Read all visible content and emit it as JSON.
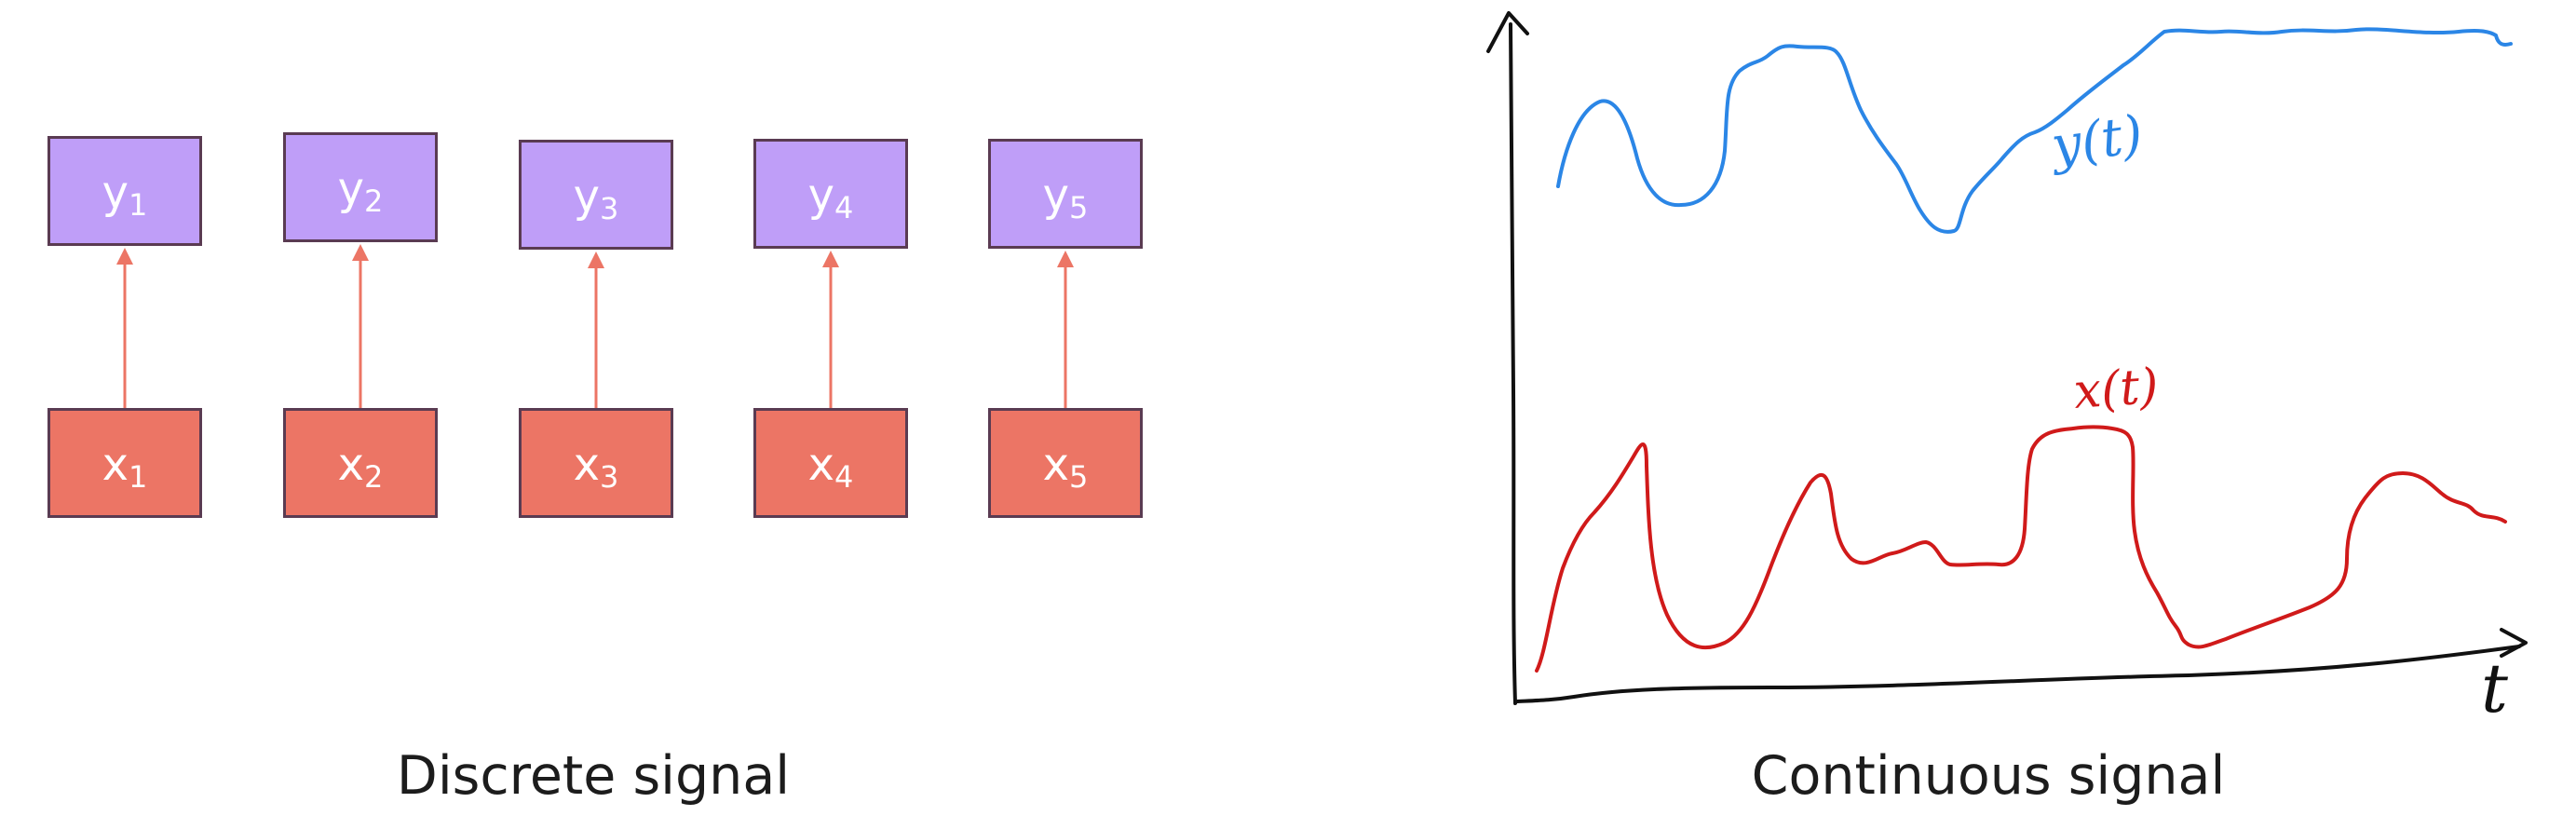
{
  "discrete": {
    "caption": "Discrete signal",
    "outputs": [
      {
        "base": "y",
        "sub": "1"
      },
      {
        "base": "y",
        "sub": "2"
      },
      {
        "base": "y",
        "sub": "3"
      },
      {
        "base": "y",
        "sub": "4"
      },
      {
        "base": "y",
        "sub": "5"
      }
    ],
    "inputs": [
      {
        "base": "x",
        "sub": "1"
      },
      {
        "base": "x",
        "sub": "2"
      },
      {
        "base": "x",
        "sub": "3"
      },
      {
        "base": "x",
        "sub": "4"
      },
      {
        "base": "x",
        "sub": "5"
      }
    ]
  },
  "continuous": {
    "caption": "Continuous signal",
    "output_label": "y(t)",
    "input_label": "x(t)",
    "axis_label": "t"
  },
  "colors": {
    "output_fill": "#bf9ef8",
    "input_fill": "#ec7565",
    "box_border": "#5a3b52",
    "arrow": "#ec7565",
    "output_curve": "#2b86e6",
    "input_curve": "#d01a1a",
    "axis": "#111111"
  }
}
